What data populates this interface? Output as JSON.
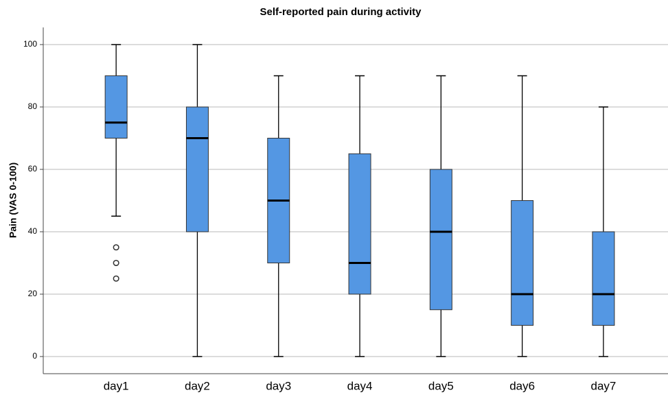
{
  "chart_data": {
    "type": "box",
    "title": "Self-reported pain during activity",
    "y_label": "Pain (VAS 0-100)",
    "categories": [
      "day1",
      "day2",
      "day3",
      "day4",
      "day5",
      "day6",
      "day7"
    ],
    "min": [
      45,
      0,
      0,
      0,
      0,
      0,
      0
    ],
    "q1": [
      70,
      40,
      30,
      20,
      15,
      10,
      10
    ],
    "median": [
      75,
      70,
      50,
      30,
      40,
      20,
      20
    ],
    "q3": [
      90,
      80,
      70,
      65,
      60,
      50,
      40
    ],
    "max": [
      100,
      100,
      90,
      90,
      90,
      90,
      80
    ],
    "outliers": [
      [
        35,
        30,
        25
      ],
      [],
      [],
      [],
      [],
      [],
      []
    ],
    "color": "#5497e3",
    "ylim": [
      -5.5,
      105.5
    ],
    "yticks": [
      0,
      20,
      40,
      60,
      80,
      100
    ],
    "grid": true
  }
}
